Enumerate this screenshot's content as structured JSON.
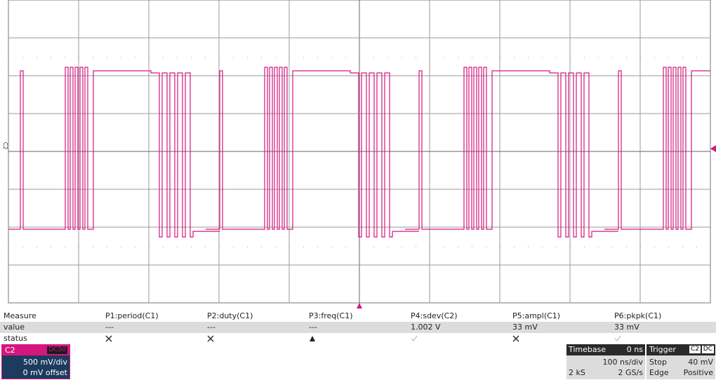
{
  "trace_label": "C2",
  "measure": {
    "title": "Measure",
    "columns": [
      "P1:period(C1)",
      "P2:duty(C1)",
      "P3:freq(C1)",
      "P4:sdev(C2)",
      "P5:ampl(C1)",
      "P6:pkpk(C1)"
    ],
    "value_label": "value",
    "values": [
      "---",
      "---",
      "---",
      "1.002 V",
      "33 mV",
      "33 mV"
    ],
    "status_label": "status"
  },
  "channel": {
    "name": "C2",
    "coupling": "DC50",
    "scale": "500 mV/div",
    "offset": "0 mV offset"
  },
  "timebase": {
    "title": "Timebase",
    "delay": "0 ns",
    "scale": "100 ns/div",
    "samples": "2 kS",
    "rate": "2 GS/s"
  },
  "trigger": {
    "title": "Trigger",
    "source": "C2",
    "coupling": "DC",
    "mode": "Stop",
    "level": "40 mV",
    "type": "Edge",
    "slope": "Positive"
  }
}
